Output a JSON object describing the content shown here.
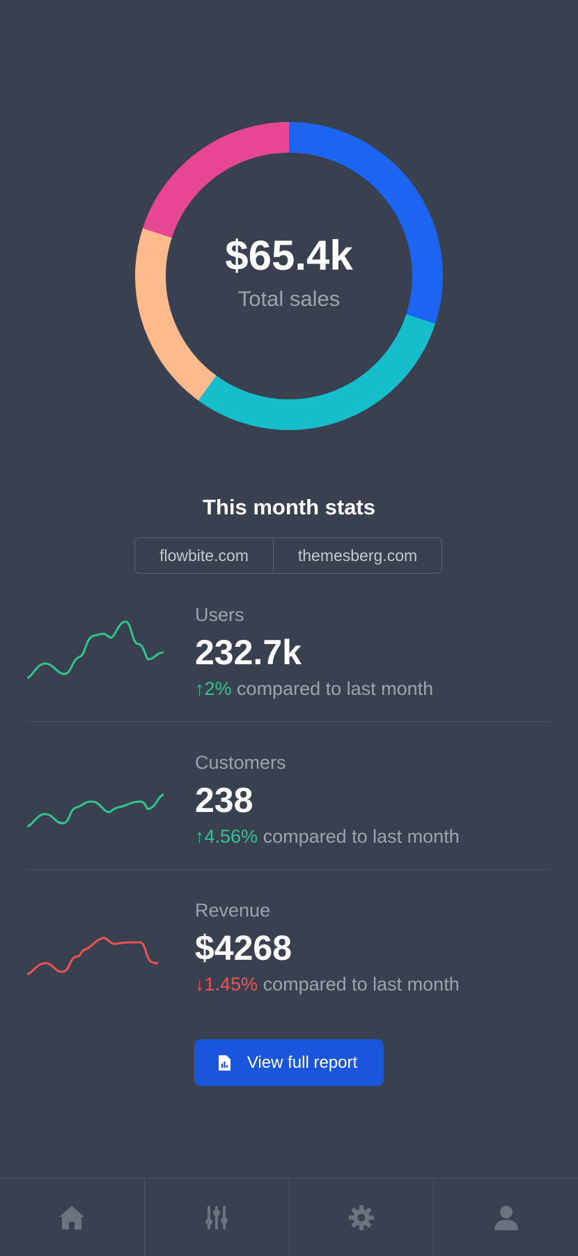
{
  "donut": {
    "value": "$65.4k",
    "label": "Total sales",
    "segments": [
      {
        "color": "#1c64f2",
        "share": 0.3
      },
      {
        "color": "#16bdca",
        "share": 0.3
      },
      {
        "color": "#fdba8c",
        "share": 0.2
      },
      {
        "color": "#e74694",
        "share": 0.2
      }
    ]
  },
  "stats_title": "This month stats",
  "tabs": [
    "flowbite.com",
    "themesberg.com"
  ],
  "stats": [
    {
      "label": "Users",
      "value": "232.7k",
      "arrow": "↑",
      "change": "2%",
      "suffix": "compared to last month",
      "trend": "up",
      "color": "#31c48d"
    },
    {
      "label": "Customers",
      "value": "238",
      "arrow": "↑",
      "change": "4.56%",
      "suffix": "compared to last month",
      "trend": "up",
      "color": "#31c48d"
    },
    {
      "label": "Revenue",
      "value": "$4268",
      "arrow": "↓",
      "change": "1.45%",
      "suffix": "compared to last month",
      "trend": "down",
      "color": "#f05252"
    }
  ],
  "report_button": {
    "label": "View full report",
    "icon": "file-chart-icon"
  },
  "bottom_nav": [
    {
      "icon": "home-icon"
    },
    {
      "icon": "sliders-icon"
    },
    {
      "icon": "gear-icon"
    },
    {
      "icon": "user-icon"
    }
  ]
}
